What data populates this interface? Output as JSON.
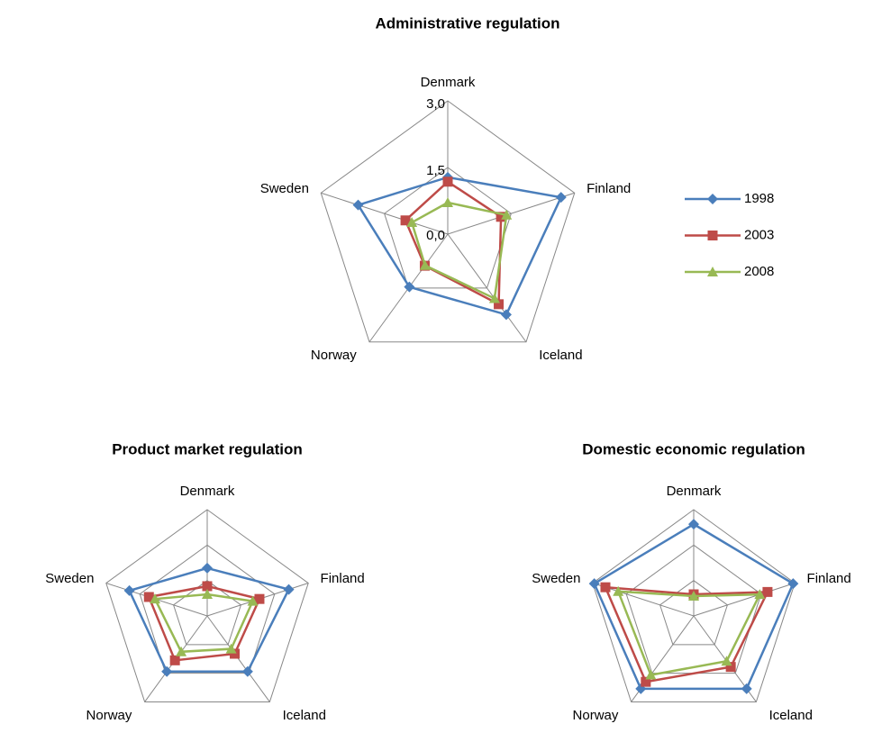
{
  "chart_data": [
    {
      "type": "radar",
      "title": "Administrative regulation",
      "categories": [
        "Denmark",
        "Finland",
        "Iceland",
        "Norway",
        "Sweden"
      ],
      "ylim": [
        0,
        3
      ],
      "yticks": [
        {
          "value": 0,
          "label": "0,0"
        },
        {
          "value": 1.5,
          "label": "1,5"
        },
        {
          "value": 3,
          "label": "3,0"
        }
      ],
      "legend": "right",
      "series": [
        {
          "name": "1998",
          "color": "#4a7ebb",
          "marker": "diamond",
          "values": [
            1.28,
            2.68,
            2.24,
            1.47,
            2.12
          ]
        },
        {
          "name": "2003",
          "color": "#be4b48",
          "marker": "square",
          "values": [
            1.18,
            1.26,
            1.95,
            0.88,
            1.0
          ]
        },
        {
          "name": "2008",
          "color": "#98b954",
          "marker": "triangle",
          "values": [
            0.71,
            1.39,
            1.79,
            0.87,
            0.85
          ]
        }
      ]
    },
    {
      "type": "radar",
      "title": "Product market regulation",
      "categories": [
        "Denmark",
        "Finland",
        "Iceland",
        "Norway",
        "Sweden"
      ],
      "ylim": [
        0,
        3
      ],
      "yticks": [
        1,
        2,
        3
      ],
      "series": [
        {
          "color": "#4a7ebb",
          "marker": "diamond",
          "values": [
            1.35,
            2.42,
            1.94,
            1.94,
            2.31
          ]
        },
        {
          "color": "#be4b48",
          "marker": "square",
          "values": [
            0.84,
            1.55,
            1.32,
            1.55,
            1.73
          ]
        },
        {
          "color": "#98b954",
          "marker": "triangle",
          "values": [
            0.61,
            1.35,
            1.15,
            1.25,
            1.55
          ]
        }
      ]
    },
    {
      "type": "radar",
      "title": "Domestic economic regulation",
      "categories": [
        "Denmark",
        "Finland",
        "Iceland",
        "Norway",
        "Sweden"
      ],
      "ylim": [
        0,
        3
      ],
      "yticks": [
        1,
        2,
        3
      ],
      "series": [
        {
          "color": "#4a7ebb",
          "marker": "diamond",
          "values": [
            2.59,
            2.95,
            2.54,
            2.54,
            2.95
          ]
        },
        {
          "color": "#be4b48",
          "marker": "square",
          "values": [
            0.61,
            2.19,
            1.78,
            2.3,
            2.62
          ]
        },
        {
          "color": "#98b954",
          "marker": "triangle",
          "values": [
            0.56,
            1.96,
            1.58,
            2.06,
            2.24
          ]
        }
      ]
    }
  ]
}
